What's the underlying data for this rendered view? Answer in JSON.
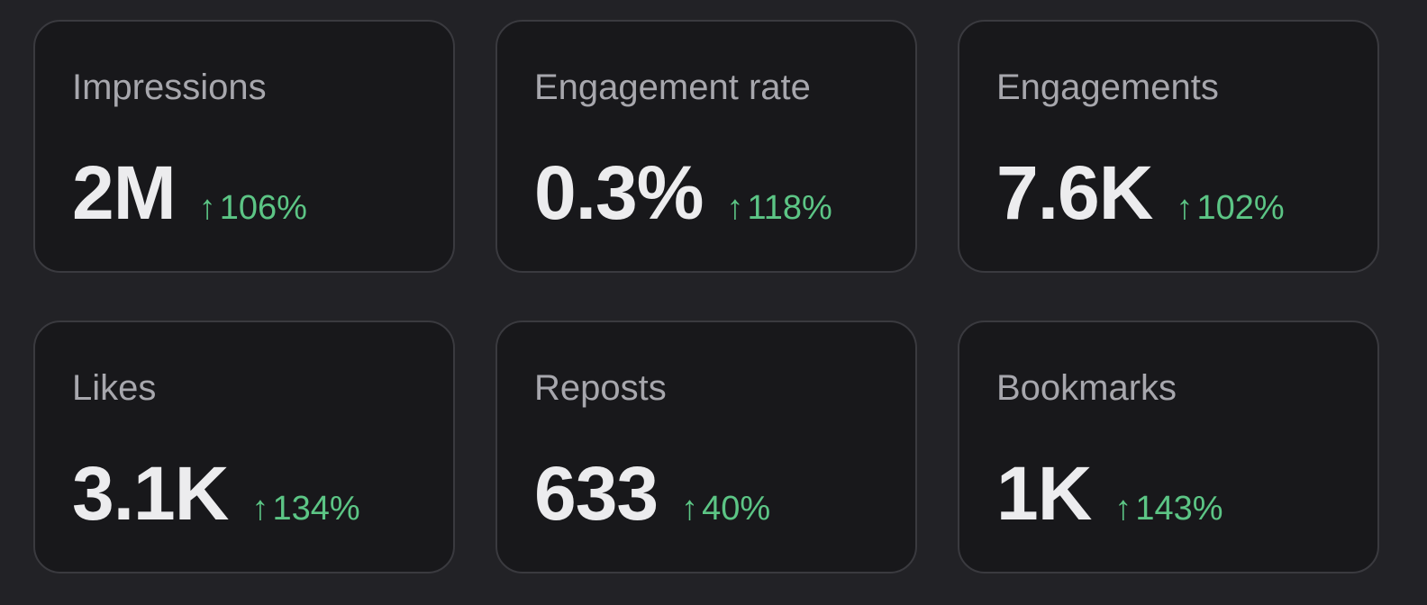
{
  "metrics": [
    {
      "label": "Impressions",
      "value": "2M",
      "change": "106%",
      "trend_icon": "arrow-up-icon",
      "arrow": "↑"
    },
    {
      "label": "Engagement rate",
      "value": "0.3%",
      "change": "118%",
      "trend_icon": "arrow-up-icon",
      "arrow": "↑"
    },
    {
      "label": "Engagements",
      "value": "7.6K",
      "change": "102%",
      "trend_icon": "arrow-up-icon",
      "arrow": "↑"
    },
    {
      "label": "Likes",
      "value": "3.1K",
      "change": "134%",
      "trend_icon": "arrow-up-icon",
      "arrow": "↑"
    },
    {
      "label": "Reposts",
      "value": "633",
      "change": "40%",
      "trend_icon": "arrow-up-icon",
      "arrow": "↑"
    },
    {
      "label": "Bookmarks",
      "value": "1K",
      "change": "143%",
      "trend_icon": "arrow-up-icon",
      "arrow": "↑"
    }
  ],
  "colors": {
    "background": "#222226",
    "card": "#18181b",
    "card_border": "#3a3a3f",
    "label": "#a7a7ad",
    "value": "#ececee",
    "positive": "#5cc585"
  }
}
